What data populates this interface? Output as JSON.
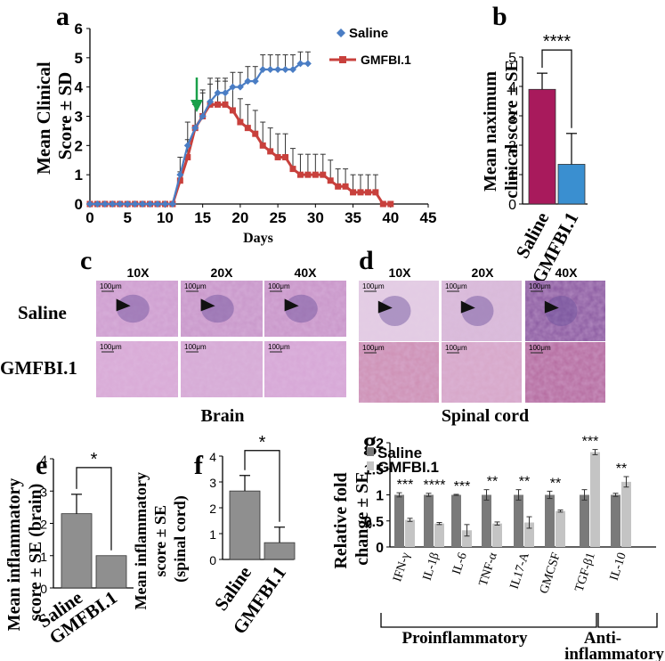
{
  "panels": {
    "a": "a",
    "b": "b",
    "c": "c",
    "d": "d",
    "e": "e",
    "f": "f",
    "g": "g"
  },
  "colors": {
    "saline_line": "#4a7dc4",
    "gmfbi_line": "#c8403c",
    "arrow": "#1aa04a",
    "saline_bar_b": "#a81a5c",
    "gmfbi_bar_b": "#3a8fd0",
    "bar_gray": "#8f8f8f",
    "saline_bar_g": "#7a7a7a",
    "gmfbi_bar_g": "#c4c4c4",
    "he_stain": "#c79ac6"
  },
  "chart_data": [
    {
      "id": "a",
      "type": "line",
      "xlabel": "Days",
      "ylabel": "Mean Clinical Score ± SD",
      "xlim": [
        0,
        45
      ],
      "ylim": [
        0,
        6
      ],
      "xticks": [
        "0",
        "5",
        "10",
        "15",
        "20",
        "25",
        "30",
        "35",
        "40",
        "45"
      ],
      "yticks": [
        "0",
        "1",
        "2",
        "3",
        "4",
        "5",
        "6"
      ],
      "arrow_day": 14,
      "series": [
        {
          "name": "Saline",
          "marker": "diamond",
          "x": [
            0,
            1,
            2,
            3,
            4,
            5,
            6,
            7,
            8,
            9,
            10,
            11,
            12,
            13,
            14,
            15,
            16,
            17,
            18,
            19,
            20,
            21,
            22,
            23,
            24,
            25,
            26,
            27,
            28,
            29
          ],
          "y": [
            0,
            0,
            0,
            0,
            0,
            0,
            0,
            0,
            0,
            0,
            0,
            0,
            1.0,
            2.0,
            2.6,
            3.0,
            3.5,
            3.8,
            3.8,
            4.0,
            4.0,
            4.2,
            4.2,
            4.6,
            4.6,
            4.6,
            4.6,
            4.6,
            4.8,
            4.8
          ],
          "err": [
            0,
            0,
            0,
            0,
            0,
            0,
            0,
            0,
            0,
            0,
            0,
            0,
            0.6,
            0.8,
            0.8,
            0.8,
            0.6,
            0.5,
            0.5,
            0.5,
            0.5,
            0.5,
            0.5,
            0.5,
            0.5,
            0.5,
            0.5,
            0.5,
            0.4,
            0.4
          ]
        },
        {
          "name": "GMFBI.1",
          "marker": "square",
          "x": [
            0,
            1,
            2,
            3,
            4,
            5,
            6,
            7,
            8,
            9,
            10,
            11,
            12,
            13,
            14,
            15,
            16,
            17,
            18,
            19,
            20,
            21,
            22,
            23,
            24,
            25,
            26,
            27,
            28,
            29,
            30,
            31,
            32,
            33,
            34,
            35,
            36,
            37,
            38,
            39,
            40
          ],
          "y": [
            0,
            0,
            0,
            0,
            0,
            0,
            0,
            0,
            0,
            0,
            0,
            0,
            0.8,
            1.6,
            2.6,
            3.0,
            3.4,
            3.4,
            3.4,
            3.2,
            2.8,
            2.6,
            2.4,
            2.0,
            1.8,
            1.6,
            1.6,
            1.2,
            1.0,
            1.0,
            1.0,
            1.0,
            0.8,
            0.6,
            0.6,
            0.4,
            0.4,
            0.4,
            0.4,
            0,
            0
          ],
          "err": [
            0,
            0,
            0,
            0,
            0,
            0,
            0,
            0,
            0,
            0,
            0,
            0,
            0.3,
            0.6,
            0.8,
            0.9,
            0.9,
            0.8,
            0.8,
            0.8,
            0.8,
            0.8,
            0.8,
            0.8,
            0.8,
            0.8,
            0.8,
            0.7,
            0.7,
            0.7,
            0.7,
            0.7,
            0.7,
            0.6,
            0.6,
            0.6,
            0.6,
            0.6,
            0.6,
            0,
            0
          ]
        }
      ]
    },
    {
      "id": "b",
      "type": "bar",
      "ylabel": "Mean naximum clinical score ± SE",
      "categories": [
        "Saline",
        "GMFBI.1"
      ],
      "values": [
        3.9,
        1.35
      ],
      "errors": [
        0.55,
        1.05
      ],
      "ylim": [
        0,
        5
      ],
      "yticks": [
        "0",
        "1",
        "2",
        "3",
        "4",
        "5"
      ],
      "significance": "****"
    },
    {
      "id": "e",
      "type": "bar",
      "ylabel": "Mean inflammatory score ± SE (brain)",
      "categories": [
        "Saline",
        "GMFBI.1"
      ],
      "values": [
        2.3,
        1.0
      ],
      "errors": [
        0.6,
        0
      ],
      "ylim": [
        0,
        4
      ],
      "yticks": [
        "0",
        "1",
        "2",
        "3",
        "4"
      ],
      "significance": "*"
    },
    {
      "id": "f",
      "type": "bar",
      "ylabel": "Mean inflammatory score ± SE (spinal cord)",
      "categories": [
        "Saline",
        "GMFBI.1"
      ],
      "values": [
        2.65,
        0.65
      ],
      "errors": [
        0.6,
        0.6
      ],
      "ylim": [
        0,
        4
      ],
      "yticks": [
        "0",
        "1",
        "2",
        "3",
        "4"
      ],
      "significance": "*"
    },
    {
      "id": "g",
      "type": "bar",
      "ylabel": "Relative fold change ± SE",
      "categories": [
        "IFN-γ",
        "IL-1β",
        "IL-6",
        "TNF-α",
        "IL17-A",
        "GMCSF",
        "TGF-β1",
        "IL-10"
      ],
      "series": [
        {
          "name": "Saline",
          "values": [
            1.0,
            1.0,
            1.0,
            1.0,
            1.0,
            1.0,
            1.0,
            1.0
          ],
          "errors": [
            0.04,
            0.03,
            0.01,
            0.1,
            0.1,
            0.07,
            0.1,
            0.03
          ]
        },
        {
          "name": "GMFBI.1",
          "values": [
            0.52,
            0.45,
            0.32,
            0.45,
            0.47,
            0.69,
            1.82,
            1.25
          ],
          "errors": [
            0.03,
            0.02,
            0.11,
            0.03,
            0.11,
            0.02,
            0.05,
            0.1
          ]
        }
      ],
      "significance": [
        "***",
        "****",
        "***",
        "**",
        "**",
        "**",
        "***",
        "**"
      ],
      "ylim": [
        0,
        2
      ],
      "yticks": [
        "0",
        "0.5",
        "1",
        "1.5",
        "2"
      ],
      "groups": [
        "Proinflammatory",
        "Anti-inflammatory"
      ]
    }
  ],
  "histology": {
    "c_caption": "Brain",
    "d_caption": "Spinal cord",
    "magnifications": [
      "10X",
      "20X",
      "40X"
    ],
    "rows": [
      "Saline",
      "GMFBI.1"
    ],
    "scale_bar": "100μm"
  },
  "g_group_labels": {
    "pro": "Proinflammatory",
    "anti_1": "Anti-",
    "anti_2": "inflammatory"
  }
}
